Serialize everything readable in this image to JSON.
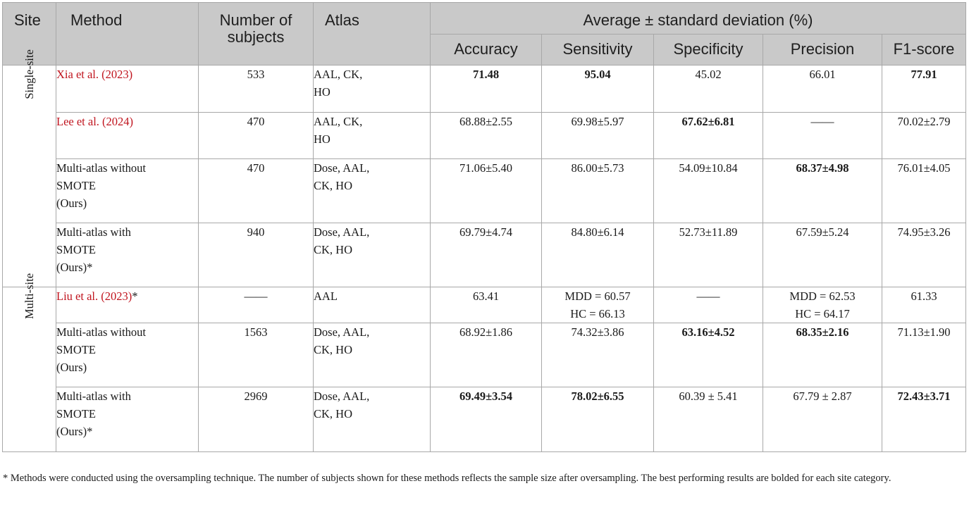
{
  "header": {
    "site": "Site",
    "method": "Method",
    "subjects": "Number of subjects",
    "atlas": "Atlas",
    "group": "Average ± standard deviation (%)",
    "metrics": [
      "Accuracy",
      "Sensitivity",
      "Specificity",
      "Precision",
      "F1-score"
    ]
  },
  "groups": [
    {
      "site": "Single-site",
      "rows": [
        {
          "method": [
            "Xia et al. (2023)"
          ],
          "is_citation": true,
          "star": "",
          "subjects": "533",
          "atlas": [
            "AAL, CK,",
            "HO"
          ],
          "values": [
            [
              "71.48"
            ],
            [
              "95.04"
            ],
            [
              "45.02"
            ],
            [
              "66.01"
            ],
            [
              "77.91"
            ]
          ],
          "bold": [
            true,
            true,
            false,
            false,
            true
          ]
        },
        {
          "method": [
            "Lee et al. (2024)"
          ],
          "is_citation": true,
          "star": "",
          "subjects": "470",
          "atlas": [
            "AAL, CK,",
            "HO"
          ],
          "values": [
            [
              "68.88±2.55"
            ],
            [
              "69.98±5.97"
            ],
            [
              "67.62±6.81"
            ],
            [
              "——"
            ],
            [
              "70.02±2.79"
            ]
          ],
          "bold": [
            false,
            false,
            true,
            false,
            false
          ]
        },
        {
          "method": [
            "Multi-atlas without",
            "SMOTE",
            "(Ours)"
          ],
          "is_citation": false,
          "star": "",
          "subjects": "470",
          "atlas": [
            "Dose, AAL,",
            "CK, HO"
          ],
          "values": [
            [
              "71.06±5.40"
            ],
            [
              "86.00±5.73"
            ],
            [
              "54.09±10.84"
            ],
            [
              "68.37±4.98"
            ],
            [
              "76.01±4.05"
            ]
          ],
          "bold": [
            false,
            false,
            false,
            true,
            false
          ]
        },
        {
          "method": [
            "Multi-atlas with",
            "SMOTE",
            "(Ours)"
          ],
          "is_citation": false,
          "star": "*",
          "subjects": "940",
          "atlas": [
            "Dose, AAL,",
            "CK, HO"
          ],
          "values": [
            [
              "69.79±4.74"
            ],
            [
              "84.80±6.14"
            ],
            [
              "52.73±11.89"
            ],
            [
              "67.59±5.24"
            ],
            [
              "74.95±3.26"
            ]
          ],
          "bold": [
            false,
            false,
            false,
            false,
            false
          ]
        }
      ]
    },
    {
      "site": "Multi-site",
      "rows": [
        {
          "method": [
            "Liu et al. (2023)"
          ],
          "is_citation": true,
          "star": "*",
          "subjects": "——",
          "atlas": [
            "AAL"
          ],
          "values": [
            [
              "63.41"
            ],
            [
              "MDD = 60.57",
              "HC = 66.13"
            ],
            [
              "——"
            ],
            [
              "MDD = 62.53",
              "HC = 64.17"
            ],
            [
              "61.33"
            ]
          ],
          "bold": [
            false,
            false,
            false,
            false,
            false
          ]
        },
        {
          "method": [
            "Multi-atlas without",
            "SMOTE",
            "(Ours)"
          ],
          "is_citation": false,
          "star": "",
          "subjects": "1563",
          "atlas": [
            "Dose, AAL,",
            "CK, HO"
          ],
          "values": [
            [
              "68.92±1.86"
            ],
            [
              "74.32±3.86"
            ],
            [
              "63.16±4.52"
            ],
            [
              "68.35±2.16"
            ],
            [
              "71.13±1.90"
            ]
          ],
          "bold": [
            false,
            false,
            true,
            true,
            false
          ]
        },
        {
          "method": [
            "Multi-atlas with",
            "SMOTE",
            "(Ours)"
          ],
          "is_citation": false,
          "star": "*",
          "subjects": "2969",
          "atlas": [
            "Dose, AAL,",
            "CK, HO"
          ],
          "values": [
            [
              "69.49±3.54"
            ],
            [
              "78.02±6.55"
            ],
            [
              "60.39 ± 5.41"
            ],
            [
              "67.79 ± 2.87"
            ],
            [
              "72.43±3.71"
            ]
          ],
          "bold": [
            true,
            true,
            false,
            false,
            true
          ]
        }
      ]
    }
  ],
  "footnote": "* Methods were conducted using the oversampling technique. The number of subjects shown for these methods reflects the sample size after oversampling. The best performing results are bolded for each site category."
}
